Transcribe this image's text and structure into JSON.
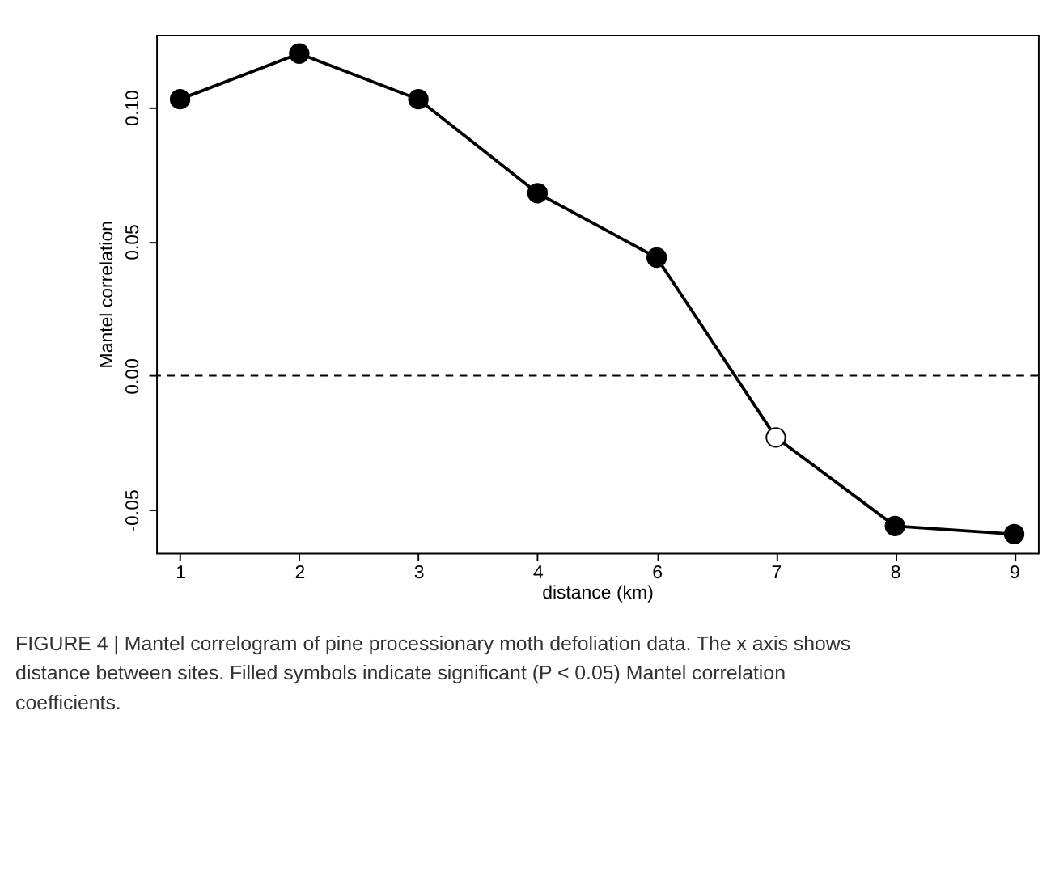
{
  "chart_data": {
    "type": "line",
    "xlabel": "distance (km)",
    "ylabel": "Mantel correlation",
    "categories": [
      "1",
      "2",
      "3",
      "4",
      "6",
      "7",
      "8",
      "9"
    ],
    "series": [
      {
        "color": "#000000",
        "values": [
          0.103,
          0.12,
          0.103,
          0.068,
          0.044,
          -0.023,
          -0.056,
          -0.059
        ],
        "colors": [
          "#000000",
          "#000000",
          "#000000",
          "#000000",
          "#000000",
          "#ffffff",
          "#000000",
          "#000000"
        ]
      }
    ],
    "ylim": [
      -0.066,
      0.127
    ],
    "yticks": [
      {
        "value": -0.05,
        "label": "-0.05"
      },
      {
        "value": 0,
        "label": "0.00"
      },
      {
        "value": 0.05,
        "label": "0.05"
      },
      {
        "value": 0.1,
        "label": "0.10"
      }
    ],
    "ref_lines": [
      {
        "axis": "y",
        "value": 0,
        "line_style": "dashed",
        "color": "#000000"
      }
    ],
    "marker": "circle",
    "line_style": "solid",
    "grid": false,
    "annotations": [
      "FIGURE 4 | Mantel correlogram of pine processionary moth defoliation data. The x axis shows distance between sites. Filled symbols indicate significant (P < 0.05) Mantel correlation coefficients."
    ]
  }
}
